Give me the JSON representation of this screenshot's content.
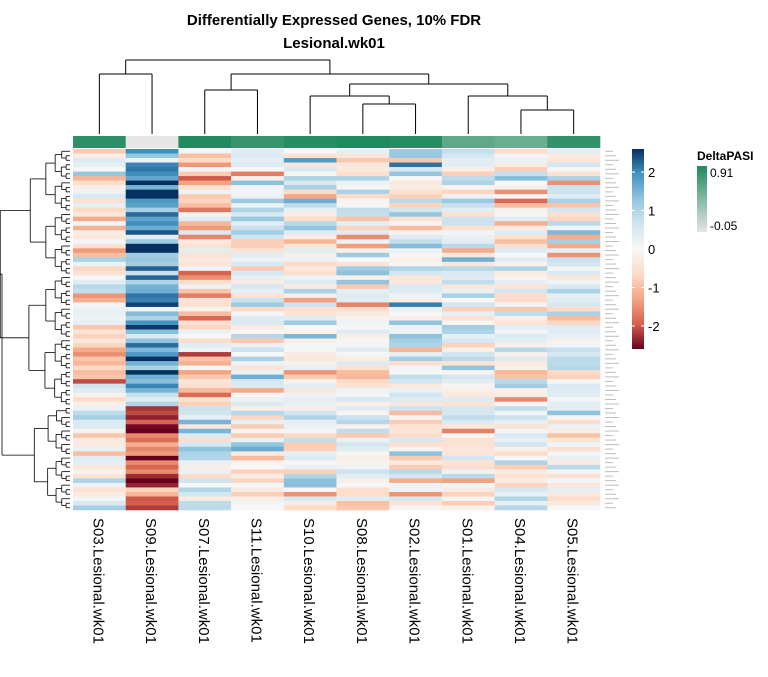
{
  "chart_data": {
    "type": "heatmap",
    "title": "Differentially Expressed Genes, 10% FDR",
    "subtitle": "Lesional.wk01",
    "columns": [
      "S03.Lesional.wk01",
      "S09.Lesional.wk01",
      "S07.Lesional.wk01",
      "S11.Lesional.wk01",
      "S10.Lesional.wk01",
      "S08.Lesional.wk01",
      "S02.Lesional.wk01",
      "S01.Lesional.wk01",
      "S04.Lesional.wk01",
      "S05.Lesional.wk01"
    ],
    "annotation": {
      "name": "DeltaPASI",
      "legend_labels": [
        "0.91",
        "-0.05"
      ],
      "values": [
        0.85,
        -0.05,
        0.9,
        0.8,
        0.87,
        0.91,
        0.88,
        0.6,
        0.55,
        0.82
      ],
      "colors": [
        "#1f8a5e",
        "#e6e6e6"
      ]
    },
    "color_scale": {
      "min": -2.6,
      "max": 2.6,
      "ticks": [
        "2",
        "1",
        "0",
        "-1",
        "-2"
      ],
      "tick_values": [
        2,
        1,
        0,
        -1,
        -2
      ],
      "colors": [
        "#67001f",
        "#d6604d",
        "#f4a582",
        "#fddbc7",
        "#f7f7f7",
        "#d1e5f0",
        "#92c5de",
        "#4393c3",
        "#053061"
      ]
    },
    "rows": 80,
    "grid": false
  }
}
